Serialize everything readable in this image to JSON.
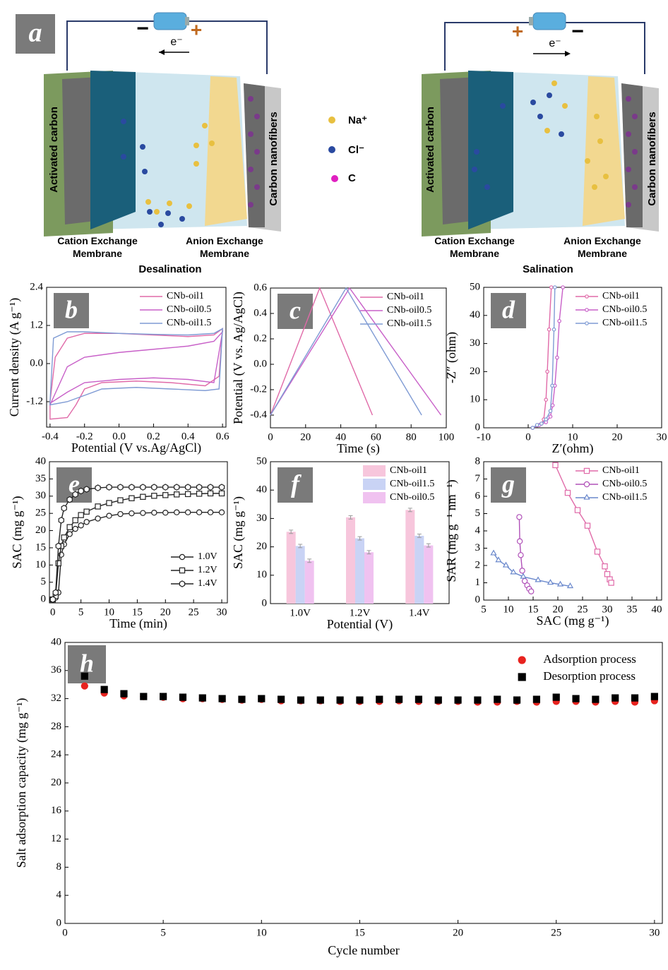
{
  "schematic": {
    "panel": "a",
    "left": {
      "caption": "Desalination",
      "electrode_left": "Activated carbon",
      "electrode_right": "Carbon nanofibers",
      "membrane_left": "Cation Exchange Membrane",
      "membrane_right": "Anion Exchange Membrane",
      "electron": "e⁻",
      "sign_left": "−",
      "sign_right": "+"
    },
    "right": {
      "caption": "Salination",
      "electrode_left": "Activated carbon",
      "electrode_right": "Carbon nanofibers",
      "membrane_left": "Cation Exchange Membrane",
      "membrane_right": "Anion Exchange Membrane",
      "electron": "e⁻",
      "sign_left": "+",
      "sign_right": "−"
    },
    "legend": [
      "Na⁺",
      "Cl⁻",
      "C"
    ]
  },
  "chart_data": [
    {
      "type": "line",
      "panel": "b",
      "xlabel": "Potential (V vs.Ag/AgCl)",
      "ylabel": "Current density (A g⁻¹)",
      "closed": true,
      "grid": false,
      "legend": "upper right",
      "xlim": [
        -0.42,
        0.62
      ],
      "xticks": [
        -0.4,
        -0.2,
        {
          "value": 0,
          "label": "0.0"
        },
        0.2,
        0.4,
        0.6
      ],
      "ylim": [
        -2.0,
        2.4
      ],
      "yticks": [
        -1.2,
        {
          "value": 0,
          "label": "0.0"
        },
        1.2,
        2.4
      ],
      "series": [
        {
          "name": "CNb-oil1",
          "color": "#e06aa8",
          "x": [
            -0.4,
            -0.37,
            -0.3,
            -0.2,
            0.0,
            0.2,
            0.4,
            0.55,
            0.6,
            0.58,
            0.5,
            0.3,
            0.1,
            -0.1,
            -0.2,
            -0.25,
            -0.3,
            -0.4
          ],
          "values": [
            -1.2,
            0.2,
            0.8,
            0.95,
            0.95,
            0.9,
            0.85,
            0.9,
            1.1,
            -0.4,
            -0.7,
            -0.6,
            -0.55,
            -0.6,
            -0.8,
            -1.3,
            -1.7,
            -1.75
          ]
        },
        {
          "name": "CNb-oil0.5",
          "color": "#c860c8",
          "x": [
            -0.4,
            -0.3,
            -0.2,
            0.0,
            0.2,
            0.4,
            0.55,
            0.6,
            0.55,
            0.4,
            0.2,
            0.0,
            -0.2,
            -0.3,
            -0.4
          ],
          "values": [
            -1.3,
            -0.1,
            0.2,
            0.35,
            0.45,
            0.55,
            0.7,
            1.0,
            -0.6,
            -0.5,
            -0.45,
            -0.5,
            -0.6,
            -0.9,
            -1.25
          ]
        },
        {
          "name": "CNb-oil1.5",
          "color": "#7f9bd4",
          "x": [
            -0.4,
            -0.38,
            -0.3,
            -0.2,
            0.0,
            0.2,
            0.4,
            0.55,
            0.6,
            0.58,
            0.5,
            0.3,
            0.1,
            -0.1,
            -0.3,
            -0.4
          ],
          "values": [
            -1.2,
            0.8,
            1.0,
            1.0,
            0.95,
            0.92,
            0.9,
            0.95,
            1.1,
            -0.8,
            -0.85,
            -0.8,
            -0.75,
            -0.8,
            -1.2,
            -1.3
          ]
        }
      ]
    },
    {
      "type": "line",
      "panel": "c",
      "xlabel": "Time (s)",
      "ylabel": "Potential (V vs. Ag/AgCl)",
      "grid": false,
      "legend": "upper right",
      "xlim": [
        0,
        100
      ],
      "xticks": [
        0,
        20,
        40,
        60,
        80,
        100
      ],
      "ylim": [
        -0.5,
        0.6
      ],
      "yticks": [
        -0.4,
        -0.2,
        {
          "value": 0,
          "label": "0.0"
        },
        0.2,
        0.4,
        0.6
      ],
      "series": [
        {
          "name": "CNb-oil1",
          "color": "#e06aa8",
          "x": [
            0,
            28,
            58
          ],
          "values": [
            -0.4,
            0.6,
            -0.4
          ]
        },
        {
          "name": "CNb-oil0.5",
          "color": "#c860c8",
          "x": [
            0,
            45,
            97
          ],
          "values": [
            -0.4,
            0.6,
            -0.4
          ]
        },
        {
          "name": "CNb-oil1.5",
          "color": "#7f9bd4",
          "x": [
            0,
            43,
            86
          ],
          "values": [
            -0.4,
            0.6,
            -0.4
          ]
        }
      ]
    },
    {
      "type": "line",
      "panel": "d",
      "xlabel": "Z′(ohm)",
      "ylabel": "-Z″ (ohm)",
      "grid": false,
      "legend": "upper right",
      "xlim": [
        -10,
        30
      ],
      "xticks": [
        -10,
        0,
        10,
        20,
        30
      ],
      "ylim": [
        0,
        50
      ],
      "yticks": [
        0,
        10,
        20,
        30,
        40,
        50
      ],
      "series": [
        {
          "name": "CNb-oil1",
          "color": "#e06aa8",
          "marker": "circle",
          "x": [
            1,
            2,
            3,
            3.5,
            4,
            4.3,
            4.7,
            5.2
          ],
          "values": [
            0,
            0.8,
            1.5,
            3,
            10,
            20,
            35,
            50
          ]
        },
        {
          "name": "CNb-oil0.5",
          "color": "#c860c8",
          "marker": "circle",
          "x": [
            1,
            2.5,
            4,
            5,
            5.5,
            6,
            6.5,
            7,
            7.8
          ],
          "values": [
            0,
            1,
            2,
            4,
            8,
            15,
            25,
            38,
            50
          ]
        },
        {
          "name": "CNb-oil1.5",
          "color": "#7f9bd4",
          "marker": "circle",
          "x": [
            1,
            2,
            3,
            4,
            5,
            5.4,
            5.8,
            6
          ],
          "values": [
            0,
            1,
            1.5,
            3,
            6,
            15,
            35,
            50
          ]
        }
      ]
    },
    {
      "type": "line",
      "panel": "e",
      "xlabel": "Time (min)",
      "ylabel": "SAC (mg g⁻¹)",
      "grid": false,
      "legend": "lower right",
      "xlim": [
        -0.6,
        31
      ],
      "xticks": [
        0,
        5,
        10,
        15,
        20,
        25,
        30
      ],
      "ylim": [
        -1,
        40
      ],
      "yticks": [
        0,
        5,
        10,
        15,
        20,
        25,
        30,
        35,
        40
      ],
      "x": [
        0,
        0.5,
        1,
        1.5,
        2,
        3,
        4,
        5,
        6,
        8,
        10,
        12,
        14,
        16,
        18,
        20,
        22,
        24,
        26,
        28,
        30
      ],
      "series": [
        {
          "name": "1.0V",
          "color": "#222222",
          "marker": "circle",
          "values": [
            0,
            0.5,
            2,
            13,
            16,
            19,
            20.5,
            21.5,
            22.5,
            23.5,
            24.3,
            24.8,
            25,
            25.1,
            25.2,
            25.2,
            25.3,
            25.3,
            25.3,
            25.3,
            25.3
          ]
        },
        {
          "name": "1.2V",
          "color": "#222222",
          "marker": "square",
          "values": [
            0,
            1,
            10.5,
            15.5,
            18,
            21,
            23,
            24.5,
            25.5,
            27,
            28,
            28.8,
            29.4,
            29.8,
            30.1,
            30.3,
            30.5,
            30.6,
            30.7,
            30.8,
            30.8
          ]
        },
        {
          "name": "1.4V",
          "color": "#222222",
          "marker": "hexagon",
          "values": [
            0,
            2,
            15.5,
            23,
            26.5,
            29,
            30.5,
            31.5,
            32,
            32.4,
            32.6,
            32.6,
            32.6,
            32.6,
            32.6,
            32.6,
            32.6,
            32.6,
            32.6,
            32.6,
            32.6
          ]
        }
      ]
    },
    {
      "type": "bar",
      "panel": "f",
      "xlabel": "Potential (V)",
      "ylabel": "SAC (mg g⁻¹)",
      "grid": false,
      "legend": "upper right",
      "categories": [
        "1.0V",
        "1.2V",
        "1.4V"
      ],
      "ylim": [
        0,
        50
      ],
      "yticks": [
        0,
        10,
        20,
        30,
        40,
        50
      ],
      "series": [
        {
          "name": "CNb-oil1",
          "color": "#f7c6dc",
          "values": [
            25.3,
            30.4,
            33
          ],
          "errors": [
            0.6,
            0.6,
            0.6
          ]
        },
        {
          "name": "CNb-oil1.5",
          "color": "#c9d3f5",
          "values": [
            20.3,
            23,
            23.9
          ],
          "errors": [
            0.6,
            0.6,
            0.6
          ]
        },
        {
          "name": "CNb-oil0.5",
          "color": "#f0c2f0",
          "values": [
            15.1,
            18.1,
            20.5
          ],
          "errors": [
            0.6,
            0.6,
            0.6
          ]
        }
      ]
    },
    {
      "type": "line",
      "panel": "g",
      "xlabel": "SAC (mg g⁻¹)",
      "ylabel": "SAR (mg g⁻¹ nm⁻¹)",
      "grid": false,
      "legend": "upper right",
      "xlim": [
        5,
        41
      ],
      "xticks": [
        5,
        10,
        15,
        20,
        25,
        30,
        35,
        40
      ],
      "ylim": [
        0,
        8
      ],
      "yticks": [
        0,
        1,
        2,
        3,
        4,
        5,
        6,
        7,
        8
      ],
      "series": [
        {
          "name": "CNb-oil1",
          "color": "#e06aa8",
          "marker": "square",
          "x": [
            19.5,
            22,
            24,
            26,
            28,
            29.5,
            30,
            30.5,
            30.8
          ],
          "values": [
            7.8,
            6.2,
            5.2,
            4.3,
            2.8,
            1.95,
            1.5,
            1.2,
            1.0
          ]
        },
        {
          "name": "CNb-oil0.5",
          "color": "#b050b8",
          "marker": "circle",
          "x": [
            12.2,
            12.3,
            12.5,
            12.8,
            13.3,
            13.8,
            14.2,
            14.6
          ],
          "values": [
            4.8,
            3.4,
            2.6,
            1.7,
            1.1,
            0.85,
            0.65,
            0.5
          ]
        },
        {
          "name": "CNb-oil1.5",
          "color": "#6a88cc",
          "marker": "triangle",
          "x": [
            7,
            8,
            9.5,
            11,
            13,
            16,
            18.5,
            20.5,
            22.5
          ],
          "values": [
            2.7,
            2.3,
            2.0,
            1.6,
            1.35,
            1.15,
            1.0,
            0.9,
            0.8
          ]
        }
      ]
    },
    {
      "type": "scatter",
      "panel": "h",
      "xlabel": "Cycle number",
      "ylabel": "Salt adsorption capacity (mg g⁻¹)",
      "grid": false,
      "legend": "upper right",
      "xlim": [
        0,
        30.4
      ],
      "xticks": [
        0,
        5,
        10,
        15,
        20,
        25,
        30
      ],
      "ylim": [
        0,
        40
      ],
      "yticks": [
        0,
        4,
        8,
        12,
        16,
        20,
        24,
        28,
        32,
        36,
        40
      ],
      "x": [
        1,
        2,
        3,
        4,
        5,
        6,
        7,
        8,
        9,
        10,
        11,
        12,
        13,
        14,
        15,
        16,
        17,
        18,
        19,
        20,
        21,
        22,
        23,
        24,
        25,
        26,
        27,
        28,
        29,
        30
      ],
      "series": [
        {
          "name": "Adsorption process",
          "color": "#e8231f",
          "marker": "circle",
          "values": [
            33.8,
            32.8,
            32.4,
            32.3,
            32.2,
            32.0,
            32.0,
            31.9,
            31.8,
            31.9,
            31.7,
            31.7,
            31.7,
            31.6,
            31.6,
            31.6,
            31.7,
            31.6,
            31.6,
            31.6,
            31.5,
            31.5,
            31.6,
            31.5,
            31.6,
            31.6,
            31.5,
            31.6,
            31.5,
            31.7
          ]
        },
        {
          "name": "Desorption process",
          "color": "#000000",
          "marker": "square",
          "values": [
            35.2,
            33.3,
            32.7,
            32.3,
            32.3,
            32.2,
            32.1,
            32.0,
            31.9,
            32.0,
            31.9,
            31.8,
            31.8,
            31.8,
            31.8,
            31.9,
            31.9,
            31.9,
            31.8,
            31.8,
            31.8,
            31.9,
            31.8,
            31.9,
            32.2,
            32.0,
            31.9,
            32.1,
            32.1,
            32.3
          ]
        }
      ]
    }
  ]
}
